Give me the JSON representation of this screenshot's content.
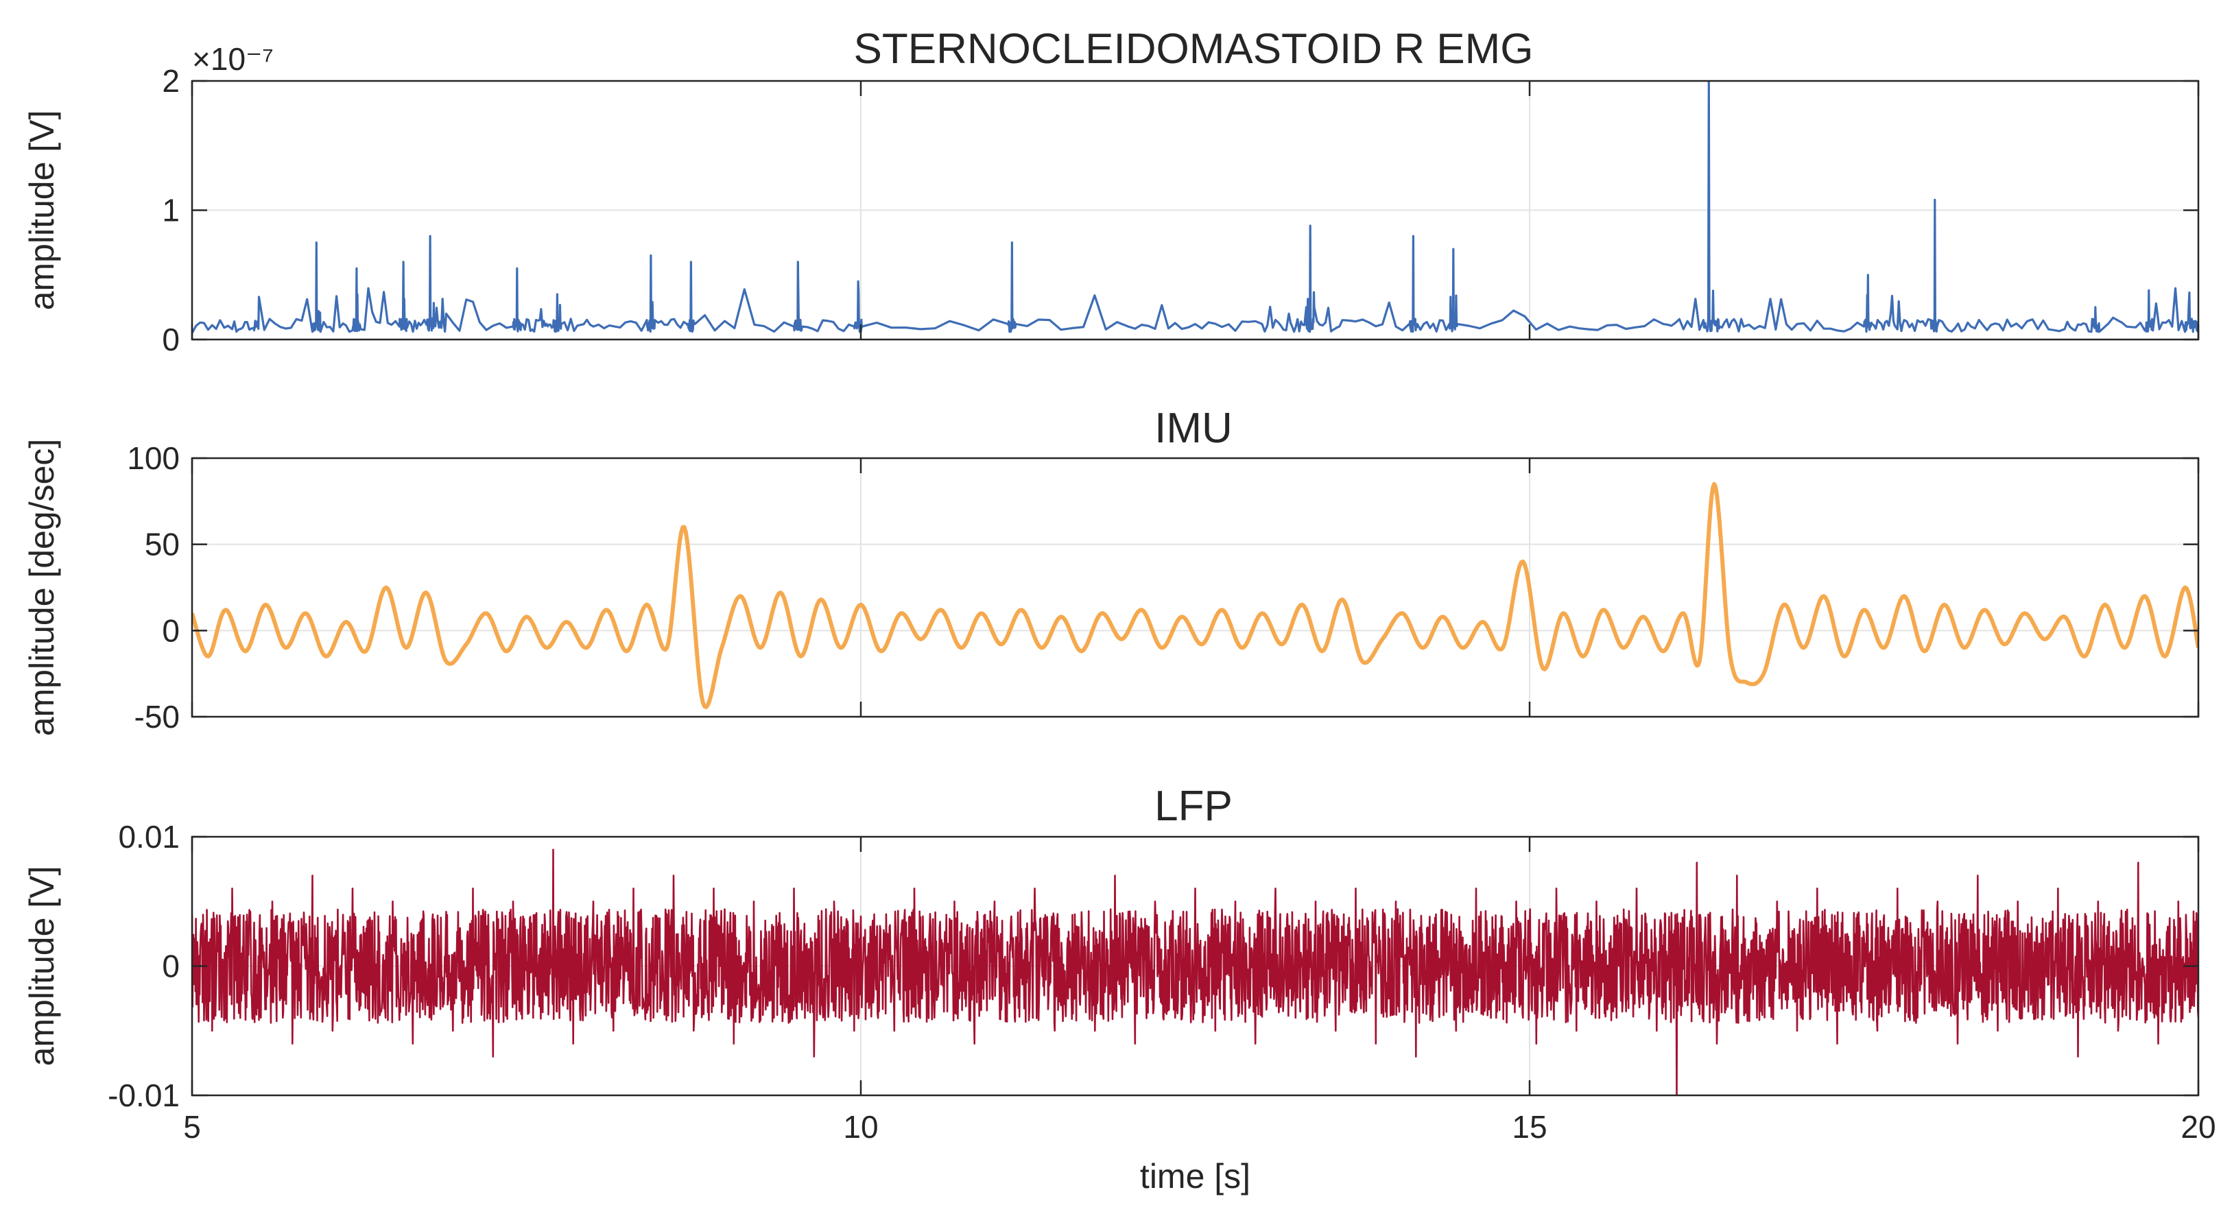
{
  "chart_data": [
    {
      "type": "line",
      "title": "STERNOCLEIDOMASTOID R EMG",
      "ylabel": "amplitude [V]",
      "xlabel": "",
      "xlim": [
        5,
        20
      ],
      "ylim": [
        0,
        2
      ],
      "y_exponent": "×10⁻⁷",
      "xticks": [
        5,
        10,
        15,
        20
      ],
      "xtick_labels": [],
      "yticks": [
        0,
        1,
        2
      ],
      "ytick_labels": [
        "0",
        "1",
        "2"
      ],
      "grid": true,
      "color": "#3e6db5",
      "series": [
        {
          "x": [
            5.0,
            5.3,
            5.46,
            5.5,
            5.9,
            5.93,
            5.96,
            6.2,
            6.23,
            6.26,
            6.55,
            6.58,
            6.61,
            6.75,
            6.78,
            6.81,
            6.9,
            7.4,
            7.43,
            7.46,
            7.6,
            7.7,
            7.73,
            7.76,
            8.0,
            8.4,
            8.43,
            8.46,
            8.7,
            8.73,
            8.76,
            9.5,
            9.53,
            9.56,
            9.95,
            9.98,
            10.01,
            11.1,
            11.13,
            11.16,
            12.0,
            12.5,
            13.0,
            13.2,
            13.33,
            13.36,
            13.39,
            13.6,
            14.1,
            14.13,
            14.16,
            14.4,
            14.43,
            14.46,
            15.3,
            16.0,
            16.3,
            16.34,
            16.38,
            16.42,
            16.6,
            17.0,
            17.5,
            17.53,
            17.56,
            17.7,
            17.8,
            18.0,
            18.03,
            18.06,
            18.3,
            18.6,
            19.0,
            19.2,
            19.23,
            19.26,
            19.6,
            19.63,
            19.66,
            19.9,
            19.93,
            19.96,
            20.0
          ],
          "y": [
            0.05,
            0.08,
            0.09,
            0.33,
            0.06,
            0.75,
            0.06,
            0.07,
            0.55,
            0.08,
            0.1,
            0.6,
            0.1,
            0.12,
            0.8,
            0.12,
            0.2,
            0.1,
            0.55,
            0.12,
            0.15,
            0.1,
            0.35,
            0.12,
            0.1,
            0.15,
            0.65,
            0.15,
            0.12,
            0.6,
            0.12,
            0.1,
            0.6,
            0.1,
            0.1,
            0.45,
            0.1,
            0.12,
            0.75,
            0.12,
            0.1,
            0.12,
            0.12,
            0.2,
            0.25,
            0.88,
            0.25,
            0.15,
            0.12,
            0.8,
            0.12,
            0.12,
            0.7,
            0.12,
            0.1,
            0.12,
            0.15,
            2.0,
            0.15,
            0.1,
            0.1,
            0.12,
            0.1,
            0.5,
            0.12,
            0.2,
            0.15,
            0.15,
            1.08,
            0.15,
            0.1,
            0.1,
            0.08,
            0.06,
            0.25,
            0.06,
            0.07,
            0.38,
            0.07,
            0.06,
            0.3,
            0.06,
            0.06
          ]
        }
      ]
    },
    {
      "type": "line",
      "title": "IMU",
      "ylabel": "amplitude [deg/sec]",
      "xlabel": "",
      "xlim": [
        5,
        20
      ],
      "ylim": [
        -50,
        100
      ],
      "xticks": [
        5,
        10,
        15,
        20
      ],
      "xtick_labels": [],
      "yticks": [
        -50,
        0,
        50,
        100
      ],
      "ytick_labels": [
        "-50",
        "0",
        "50",
        "100"
      ],
      "grid": true,
      "color": "#f5a94e",
      "series": [
        {
          "x": [
            5.0,
            5.12,
            5.25,
            5.4,
            5.55,
            5.7,
            5.85,
            6.0,
            6.15,
            6.3,
            6.45,
            6.6,
            6.75,
            6.9,
            7.05,
            7.2,
            7.35,
            7.5,
            7.65,
            7.8,
            7.95,
            8.1,
            8.25,
            8.4,
            8.55,
            8.68,
            8.82,
            8.96,
            9.1,
            9.25,
            9.4,
            9.55,
            9.7,
            9.85,
            10.0,
            10.15,
            10.3,
            10.45,
            10.6,
            10.75,
            10.9,
            11.05,
            11.2,
            11.35,
            11.5,
            11.65,
            11.8,
            11.95,
            12.1,
            12.25,
            12.4,
            12.55,
            12.7,
            12.85,
            13.0,
            13.15,
            13.3,
            13.45,
            13.6,
            13.75,
            13.9,
            14.05,
            14.2,
            14.35,
            14.5,
            14.65,
            14.8,
            14.95,
            15.1,
            15.25,
            15.4,
            15.55,
            15.7,
            15.85,
            16.0,
            16.15,
            16.27,
            16.38,
            16.5,
            16.62,
            16.75,
            16.9,
            17.05,
            17.2,
            17.35,
            17.5,
            17.65,
            17.8,
            17.95,
            18.1,
            18.25,
            18.4,
            18.55,
            18.7,
            18.85,
            19.0,
            19.15,
            19.3,
            19.45,
            19.6,
            19.75,
            19.9,
            20.0
          ],
          "y": [
            10,
            -15,
            12,
            -12,
            15,
            -10,
            10,
            -15,
            5,
            -12,
            25,
            -10,
            22,
            -18,
            -8,
            10,
            -12,
            8,
            -10,
            5,
            -10,
            12,
            -12,
            15,
            -10,
            60,
            -42,
            -10,
            20,
            -10,
            22,
            -15,
            18,
            -10,
            15,
            -12,
            10,
            -5,
            12,
            -10,
            10,
            -8,
            12,
            -10,
            8,
            -12,
            10,
            -5,
            12,
            -10,
            8,
            -8,
            12,
            -10,
            10,
            -8,
            15,
            -12,
            18,
            -18,
            -5,
            10,
            -10,
            8,
            -10,
            5,
            -10,
            40,
            -22,
            10,
            -15,
            12,
            -10,
            8,
            -12,
            10,
            -18,
            85,
            -15,
            -30,
            -25,
            15,
            -10,
            20,
            -15,
            12,
            -10,
            20,
            -12,
            15,
            -10,
            12,
            -8,
            10,
            -5,
            8,
            -15,
            15,
            -10,
            20,
            -15,
            25,
            -10
          ]
        }
      ]
    },
    {
      "type": "line",
      "title": "LFP",
      "ylabel": "amplitude [V]",
      "xlabel": "time [s]",
      "xlim": [
        5,
        20
      ],
      "ylim": [
        -0.01,
        0.01
      ],
      "xticks": [
        5,
        10,
        15,
        20
      ],
      "xtick_labels": [
        "5",
        "10",
        "15",
        "20"
      ],
      "yticks": [
        -0.01,
        0,
        0.01
      ],
      "ytick_labels": [
        "-0.01",
        "0",
        "0.01"
      ],
      "grid": true,
      "color": "#a5102f",
      "series": [
        {
          "x": [
            5.0,
            5.15,
            5.3,
            5.45,
            5.6,
            5.75,
            5.9,
            6.05,
            6.2,
            6.35,
            6.5,
            6.65,
            6.8,
            6.95,
            7.1,
            7.25,
            7.4,
            7.55,
            7.7,
            7.85,
            8.0,
            8.15,
            8.3,
            8.45,
            8.6,
            8.75,
            8.9,
            9.05,
            9.2,
            9.35,
            9.5,
            9.65,
            9.8,
            9.95,
            10.1,
            10.25,
            10.4,
            10.55,
            10.7,
            10.85,
            11.0,
            11.15,
            11.3,
            11.45,
            11.6,
            11.75,
            11.9,
            12.05,
            12.2,
            12.35,
            12.5,
            12.65,
            12.8,
            12.95,
            13.1,
            13.25,
            13.4,
            13.55,
            13.7,
            13.85,
            14.0,
            14.15,
            14.3,
            14.45,
            14.6,
            14.75,
            14.9,
            15.05,
            15.2,
            15.35,
            15.5,
            15.65,
            15.8,
            15.95,
            16.1,
            16.25,
            16.4,
            16.55,
            16.7,
            16.85,
            17.0,
            17.15,
            17.3,
            17.45,
            17.6,
            17.75,
            17.9,
            18.05,
            18.2,
            18.35,
            18.5,
            18.65,
            18.8,
            18.95,
            19.1,
            19.25,
            19.4,
            19.55,
            19.7,
            19.85,
            20.0
          ],
          "y": [
            0.004,
            -0.005,
            0.006,
            -0.004,
            0.005,
            -0.006,
            0.007,
            -0.005,
            0.006,
            -0.004,
            0.005,
            -0.006,
            0.004,
            -0.005,
            0.006,
            -0.007,
            0.005,
            -0.004,
            0.009,
            -0.006,
            0.005,
            -0.005,
            0.006,
            -0.004,
            0.007,
            -0.005,
            0.006,
            -0.006,
            0.005,
            -0.004,
            0.006,
            -0.007,
            0.005,
            -0.005,
            0.004,
            -0.005,
            0.006,
            -0.004,
            0.005,
            -0.006,
            0.005,
            -0.004,
            0.006,
            -0.005,
            0.004,
            -0.005,
            0.007,
            -0.006,
            0.005,
            -0.004,
            0.006,
            -0.005,
            0.005,
            -0.006,
            0.006,
            -0.004,
            0.005,
            -0.005,
            0.006,
            -0.006,
            0.005,
            -0.007,
            0.004,
            -0.005,
            0.006,
            -0.004,
            0.005,
            -0.006,
            0.006,
            -0.005,
            0.005,
            -0.004,
            0.006,
            -0.005,
            -0.01,
            0.008,
            -0.006,
            0.007,
            -0.004,
            0.005,
            -0.005,
            0.006,
            -0.006,
            0.004,
            -0.005,
            0.006,
            -0.004,
            0.005,
            -0.006,
            0.007,
            -0.005,
            0.005,
            -0.004,
            0.006,
            -0.007,
            0.005,
            -0.005,
            0.008,
            -0.006,
            0.005,
            -0.004
          ]
        }
      ]
    }
  ]
}
